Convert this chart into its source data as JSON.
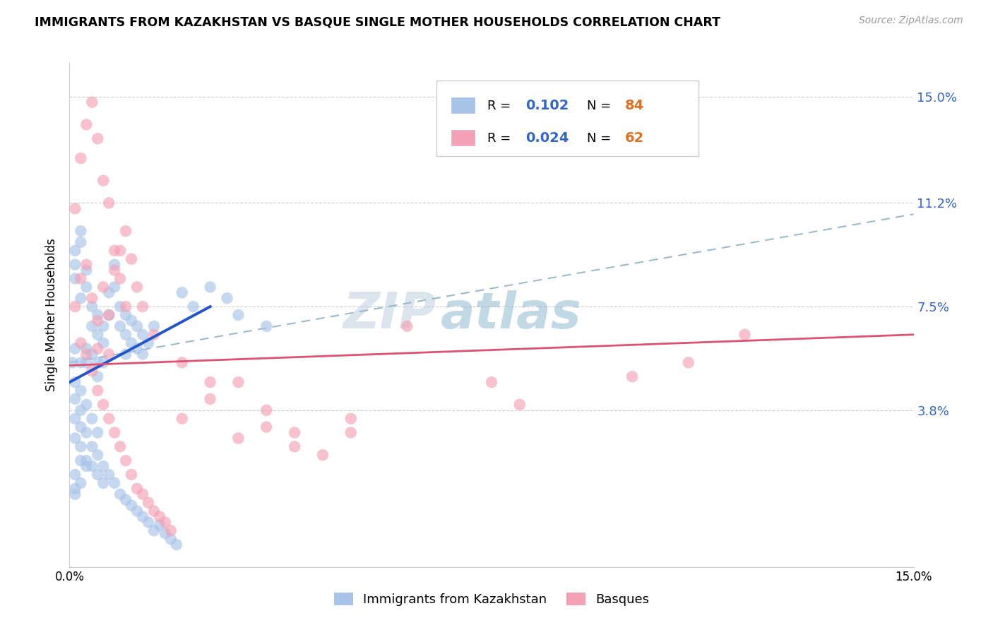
{
  "title": "IMMIGRANTS FROM KAZAKHSTAN VS BASQUE SINGLE MOTHER HOUSEHOLDS CORRELATION CHART",
  "source": "Source: ZipAtlas.com",
  "ylabel": "Single Mother Households",
  "y_ticks": [
    0.0,
    0.038,
    0.075,
    0.112,
    0.15
  ],
  "y_tick_labels": [
    "",
    "3.8%",
    "7.5%",
    "11.2%",
    "15.0%"
  ],
  "x_ticks": [
    0.0,
    0.05,
    0.1,
    0.15
  ],
  "x_tick_labels": [
    "0.0%",
    "",
    "",
    "15.0%"
  ],
  "x_lim": [
    0.0,
    0.15
  ],
  "y_lim": [
    -0.018,
    0.162
  ],
  "legend_r1": "0.102",
  "legend_n1": "84",
  "legend_r2": "0.024",
  "legend_n2": "62",
  "color_blue": "#a8c4e8",
  "color_pink": "#f4a0b5",
  "color_blue_line": "#2255cc",
  "color_pink_line": "#e05070",
  "color_dashed_line": "#99bbcc",
  "watermark_zip": "ZIP",
  "watermark_atlas": "atlas",
  "blue_line_x0": 0.0,
  "blue_line_y0": 0.048,
  "blue_line_x1": 0.025,
  "blue_line_y1": 0.075,
  "pink_line_x0": 0.0,
  "pink_line_y0": 0.054,
  "pink_line_x1": 0.15,
  "pink_line_y1": 0.065,
  "dash_line_x0": 0.0,
  "dash_line_y0": 0.055,
  "dash_line_x1": 0.15,
  "dash_line_y1": 0.108,
  "blue_x": [
    0.0005,
    0.001,
    0.001,
    0.001,
    0.001,
    0.002,
    0.002,
    0.002,
    0.002,
    0.003,
    0.003,
    0.003,
    0.003,
    0.004,
    0.004,
    0.004,
    0.005,
    0.005,
    0.005,
    0.005,
    0.006,
    0.006,
    0.006,
    0.007,
    0.007,
    0.008,
    0.008,
    0.009,
    0.009,
    0.01,
    0.01,
    0.01,
    0.011,
    0.011,
    0.012,
    0.012,
    0.013,
    0.013,
    0.014,
    0.015,
    0.001,
    0.002,
    0.002,
    0.003,
    0.004,
    0.005,
    0.006,
    0.007,
    0.008,
    0.009,
    0.01,
    0.011,
    0.012,
    0.013,
    0.014,
    0.015,
    0.016,
    0.017,
    0.018,
    0.019,
    0.001,
    0.001,
    0.002,
    0.003,
    0.004,
    0.005,
    0.006,
    0.001,
    0.002,
    0.003,
    0.004,
    0.005,
    0.02,
    0.022,
    0.025,
    0.028,
    0.03,
    0.035,
    0.001,
    0.001,
    0.001,
    0.002,
    0.002,
    0.003
  ],
  "blue_y": [
    0.055,
    0.095,
    0.09,
    0.085,
    0.06,
    0.098,
    0.102,
    0.078,
    0.055,
    0.088,
    0.082,
    0.06,
    0.055,
    0.075,
    0.068,
    0.058,
    0.072,
    0.065,
    0.055,
    0.05,
    0.068,
    0.062,
    0.055,
    0.08,
    0.072,
    0.09,
    0.082,
    0.075,
    0.068,
    0.072,
    0.065,
    0.058,
    0.07,
    0.062,
    0.068,
    0.06,
    0.065,
    0.058,
    0.062,
    0.068,
    0.042,
    0.038,
    0.032,
    0.03,
    0.025,
    0.022,
    0.018,
    0.015,
    0.012,
    0.008,
    0.006,
    0.004,
    0.002,
    0.0,
    -0.002,
    -0.005,
    -0.003,
    -0.006,
    -0.008,
    -0.01,
    0.035,
    0.028,
    0.025,
    0.02,
    0.018,
    0.015,
    0.012,
    0.048,
    0.045,
    0.04,
    0.035,
    0.03,
    0.08,
    0.075,
    0.082,
    0.078,
    0.072,
    0.068,
    0.01,
    0.008,
    0.015,
    0.012,
    0.02,
    0.018
  ],
  "pink_x": [
    0.001,
    0.002,
    0.003,
    0.004,
    0.005,
    0.006,
    0.007,
    0.008,
    0.009,
    0.01,
    0.011,
    0.012,
    0.013,
    0.002,
    0.003,
    0.004,
    0.005,
    0.006,
    0.007,
    0.008,
    0.009,
    0.01,
    0.011,
    0.012,
    0.013,
    0.014,
    0.015,
    0.016,
    0.017,
    0.018,
    0.02,
    0.025,
    0.03,
    0.035,
    0.04,
    0.05,
    0.06,
    0.075,
    0.11,
    0.12,
    0.001,
    0.002,
    0.003,
    0.004,
    0.005,
    0.006,
    0.007,
    0.008,
    0.009,
    0.01,
    0.03,
    0.04,
    0.015,
    0.02,
    0.025,
    0.035,
    0.045,
    0.005,
    0.007,
    0.05,
    0.08,
    0.1
  ],
  "pink_y": [
    0.075,
    0.085,
    0.09,
    0.078,
    0.07,
    0.082,
    0.072,
    0.088,
    0.095,
    0.102,
    0.092,
    0.082,
    0.075,
    0.062,
    0.058,
    0.052,
    0.045,
    0.04,
    0.035,
    0.03,
    0.025,
    0.02,
    0.015,
    0.01,
    0.008,
    0.005,
    0.002,
    0.0,
    -0.002,
    -0.005,
    0.035,
    0.042,
    0.048,
    0.038,
    0.03,
    0.035,
    0.068,
    0.048,
    0.055,
    0.065,
    0.11,
    0.128,
    0.14,
    0.148,
    0.135,
    0.12,
    0.112,
    0.095,
    0.085,
    0.075,
    0.028,
    0.025,
    0.065,
    0.055,
    0.048,
    0.032,
    0.022,
    0.06,
    0.058,
    0.03,
    0.04,
    0.05
  ]
}
